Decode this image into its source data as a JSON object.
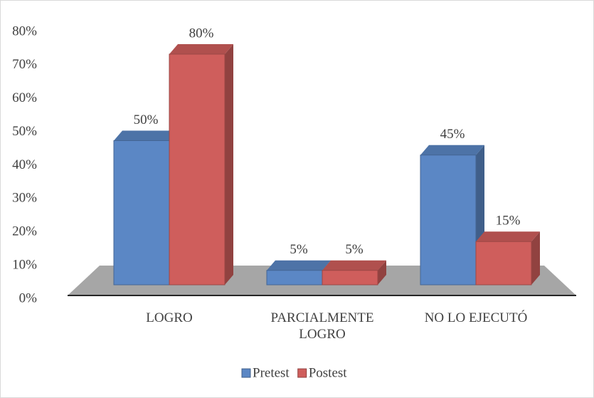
{
  "chart_data": {
    "type": "bar3d",
    "categories": [
      "LOGRO",
      "PARCIALMENTE LOGRO",
      "NO LO EJECUTÓ"
    ],
    "series": [
      {
        "name": "Pretest",
        "color": "#5b87c5",
        "values": [
          50,
          5,
          45
        ],
        "value_labels": [
          "50%",
          "5%",
          "45%"
        ]
      },
      {
        "name": "Postest",
        "color": "#cf5e5c",
        "values": [
          80,
          5,
          15
        ],
        "value_labels": [
          "80%",
          "5%",
          "15%"
        ]
      }
    ],
    "ylim": [
      0,
      80
    ],
    "yticks": [
      {
        "value": 0,
        "label": "0%"
      },
      {
        "value": 10,
        "label": "10%"
      },
      {
        "value": 20,
        "label": "20%"
      },
      {
        "value": 30,
        "label": "30%"
      },
      {
        "value": 40,
        "label": "40%"
      },
      {
        "value": 50,
        "label": "50%"
      },
      {
        "value": 60,
        "label": "60%"
      },
      {
        "value": 70,
        "label": "70%"
      },
      {
        "value": 80,
        "label": "80%"
      }
    ],
    "legend": "bottom"
  }
}
